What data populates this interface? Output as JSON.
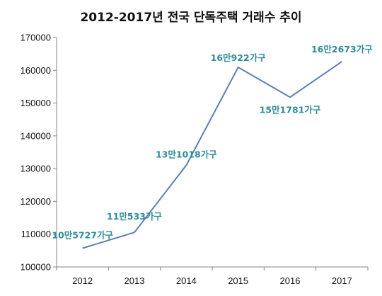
{
  "chart_data": {
    "type": "line",
    "title": "2012-2017년 전국 단독주택 거래수 추이",
    "xlabel": "",
    "ylabel": "",
    "categories": [
      "2012",
      "2013",
      "2014",
      "2015",
      "2016",
      "2017"
    ],
    "series": [
      {
        "values": [
          105727,
          110533,
          131018,
          160922,
          151781,
          162673
        ]
      }
    ],
    "data_labels": [
      "10만5727가구",
      "11만533가구",
      "13만1018가구",
      "16만922가구",
      "15만1781가구",
      "16만2673가구"
    ],
    "y_ticks": [
      "100000",
      "110000",
      "120000",
      "130000",
      "140000",
      "150000",
      "160000",
      "170000"
    ],
    "ylim": [
      100000,
      170000
    ],
    "grid": false,
    "legend": "none",
    "colors": {
      "line": "#5b7fb5",
      "label": "#2e8c99",
      "axis": "#868686"
    }
  }
}
